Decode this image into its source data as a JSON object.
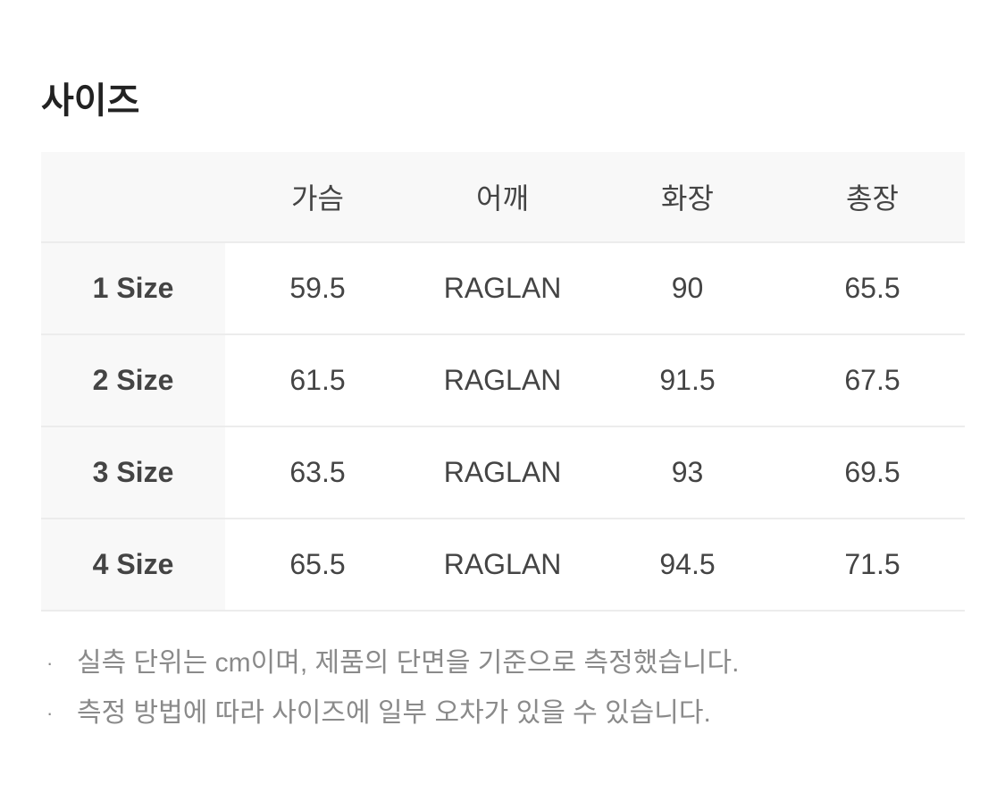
{
  "title": "사이즈",
  "table": {
    "headers": [
      "",
      "가슴",
      "어깨",
      "화장",
      "총장"
    ],
    "rows": [
      [
        "1 Size",
        "59.5",
        "RAGLAN",
        "90",
        "65.5"
      ],
      [
        "2 Size",
        "61.5",
        "RAGLAN",
        "91.5",
        "67.5"
      ],
      [
        "3 Size",
        "63.5",
        "RAGLAN",
        "93",
        "69.5"
      ],
      [
        "4 Size",
        "65.5",
        "RAGLAN",
        "94.5",
        "71.5"
      ]
    ]
  },
  "notes": [
    "실측 단위는 cm이며, 제품의 단면을 기준으로 측정했습니다.",
    "측정 방법에 따라 사이즈에 일부 오차가 있을 수 있습니다."
  ],
  "bullet": "·"
}
